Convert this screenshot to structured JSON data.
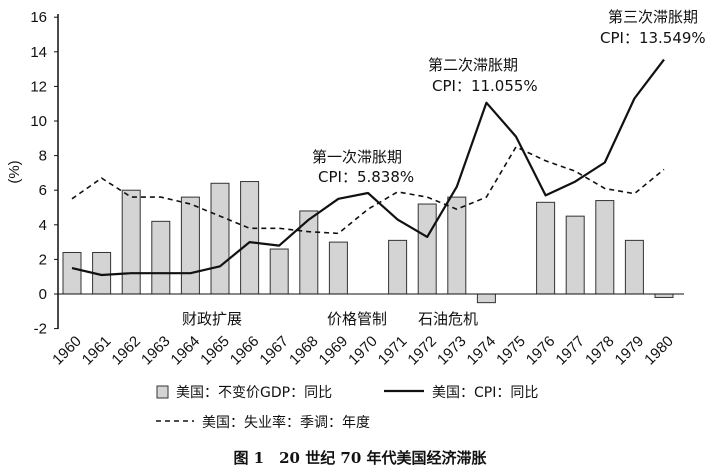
{
  "chart_data": {
    "type": "bar+line",
    "caption": "图 1　20 世纪 70 年代美国经济滞胀",
    "ylabel": "(%)",
    "ylim": [
      -2,
      16
    ],
    "yticks": [
      -2,
      0,
      2,
      4,
      6,
      8,
      10,
      12,
      14,
      16
    ],
    "categories": [
      "1960",
      "1961",
      "1962",
      "1963",
      "1964",
      "1965",
      "1966",
      "1967",
      "1968",
      "1969",
      "1970",
      "1971",
      "1972",
      "1973",
      "1974",
      "1975",
      "1976",
      "1977",
      "1978",
      "1979",
      "1980"
    ],
    "series": [
      {
        "name": "美国：不变价GDP：同比",
        "type": "bar",
        "values": [
          2.4,
          2.4,
          6.0,
          4.2,
          5.6,
          6.4,
          6.5,
          2.6,
          4.8,
          3.0,
          null,
          3.1,
          5.2,
          5.6,
          -0.5,
          null,
          5.3,
          4.5,
          5.4,
          3.1,
          -0.2
        ]
      },
      {
        "name": "美国：CPI：同比",
        "type": "line",
        "style": "solid",
        "values": [
          1.5,
          1.1,
          1.2,
          1.2,
          1.2,
          1.6,
          3.0,
          2.8,
          4.3,
          5.5,
          5.838,
          4.3,
          3.3,
          6.2,
          11.055,
          9.1,
          5.7,
          6.5,
          7.6,
          11.3,
          13.549
        ]
      },
      {
        "name": "美国：失业率：季调：年度",
        "type": "line",
        "style": "dashed",
        "values": [
          5.5,
          6.7,
          5.6,
          5.6,
          5.2,
          4.5,
          3.8,
          3.8,
          3.6,
          3.5,
          4.9,
          5.9,
          5.6,
          4.9,
          5.6,
          8.5,
          7.7,
          7.1,
          6.1,
          5.8,
          7.2
        ]
      }
    ],
    "annotations": [
      {
        "title": "第一次滞胀期",
        "label": "CPI：5.838%",
        "year": "1970"
      },
      {
        "title": "第二次滞胀期",
        "label": "CPI：11.055%",
        "year": "1974"
      },
      {
        "title": "第三次滞胀期",
        "label": "CPI：13.549%",
        "year": "1980"
      }
    ],
    "events": [
      {
        "label": "财政扩展",
        "year": "1965"
      },
      {
        "label": "价格管制",
        "year": "1971"
      },
      {
        "label": "石油危机",
        "year": "1973"
      }
    ],
    "grid": false,
    "legend_position": "bottom"
  }
}
